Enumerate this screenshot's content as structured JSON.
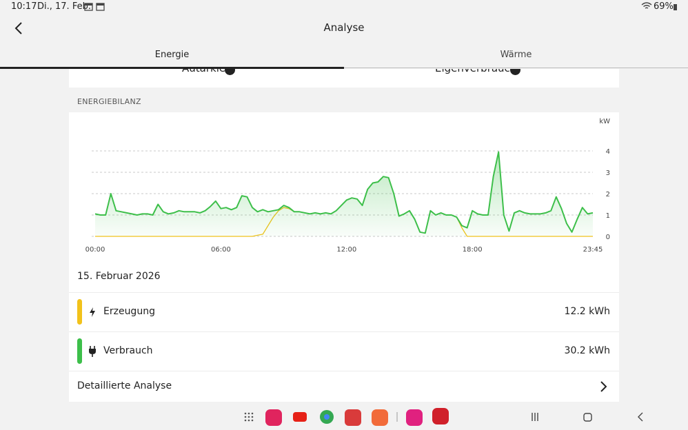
{
  "status_bar": {
    "time": "10:17",
    "date": "Di., 17. Feb.",
    "battery": "69%"
  },
  "header": {
    "title": "Analyse"
  },
  "tabs": [
    "Energie",
    "Wärme"
  ],
  "top_items": [
    "Autarkie",
    "Eigenverbrauch"
  ],
  "section_label": "ENERGIEBILANZ",
  "chart_data": {
    "type": "line",
    "y_unit": "kW",
    "x": [
      0,
      0.25,
      0.5,
      0.75,
      1,
      1.25,
      1.5,
      1.75,
      2,
      2.25,
      2.5,
      2.75,
      3,
      3.25,
      3.5,
      3.75,
      4,
      4.25,
      4.5,
      4.75,
      5,
      5.25,
      5.5,
      5.75,
      6,
      6.25,
      6.5,
      6.75,
      7,
      7.25,
      7.5,
      7.75,
      8,
      8.25,
      8.5,
      8.75,
      9,
      9.25,
      9.5,
      9.75,
      10,
      10.25,
      10.5,
      10.75,
      11,
      11.25,
      11.5,
      11.75,
      12,
      12.25,
      12.5,
      12.75,
      13,
      13.25,
      13.5,
      13.75,
      14,
      14.25,
      14.5,
      14.75,
      15,
      15.25,
      15.5,
      15.75,
      16,
      16.25,
      16.5,
      16.75,
      17,
      17.25,
      17.5,
      17.75,
      18,
      18.25,
      18.5,
      18.75,
      19,
      19.25,
      19.5,
      19.75,
      20,
      20.25,
      20.5,
      20.75,
      21,
      21.25,
      21.5,
      21.75,
      22,
      22.25,
      22.5,
      22.75,
      23,
      23.25,
      23.5,
      23.75
    ],
    "series": [
      {
        "name": "Erzeugung",
        "color": "#f2c21b",
        "values": [
          0,
          0,
          0,
          0,
          0,
          0,
          0,
          0,
          0,
          0,
          0,
          0,
          0,
          0,
          0,
          0,
          0,
          0,
          0,
          0,
          0,
          0,
          0,
          0,
          0,
          0,
          0,
          0,
          0,
          0,
          0,
          0.05,
          0.1,
          0.5,
          0.9,
          1.2,
          1.35,
          1.3,
          1.15,
          1.15,
          1.1,
          1.05,
          1.1,
          1.05,
          1.1,
          1.05,
          1.2,
          1.45,
          1.7,
          1.8,
          1.75,
          1.45,
          2.2,
          2.5,
          2.55,
          2.8,
          2.75,
          2.0,
          0.95,
          1.05,
          1.2,
          0.8,
          0.2,
          0.15,
          1.2,
          1.0,
          1.1,
          1.0,
          1.0,
          0.9,
          0.4,
          0,
          0,
          0,
          0,
          0,
          0,
          0,
          0,
          0,
          0,
          0,
          0,
          0,
          0,
          0,
          0,
          0,
          0,
          0,
          0,
          0,
          0,
          0,
          0,
          0
        ]
      },
      {
        "name": "Verbrauch",
        "color": "#3dbf4a",
        "values": [
          1.05,
          1.0,
          1.0,
          2.0,
          1.2,
          1.15,
          1.1,
          1.05,
          1.0,
          1.05,
          1.05,
          1.0,
          1.5,
          1.15,
          1.05,
          1.1,
          1.2,
          1.15,
          1.15,
          1.15,
          1.1,
          1.2,
          1.4,
          1.65,
          1.3,
          1.35,
          1.25,
          1.35,
          1.9,
          1.85,
          1.35,
          1.15,
          1.25,
          1.15,
          1.2,
          1.25,
          1.45,
          1.35,
          1.15,
          1.15,
          1.1,
          1.05,
          1.1,
          1.05,
          1.1,
          1.05,
          1.2,
          1.45,
          1.7,
          1.8,
          1.75,
          1.45,
          2.2,
          2.5,
          2.55,
          2.8,
          2.75,
          2.0,
          0.95,
          1.05,
          1.2,
          0.8,
          0.2,
          0.15,
          1.2,
          1.0,
          1.1,
          1.0,
          1.0,
          0.9,
          0.5,
          0.4,
          1.2,
          1.05,
          1.0,
          1.0,
          2.8,
          3.95,
          1.0,
          0.25,
          1.1,
          1.2,
          1.1,
          1.05,
          1.05,
          1.05,
          1.1,
          1.2,
          1.85,
          1.3,
          0.6,
          0.2,
          0.8,
          1.35,
          1.05,
          1.1
        ]
      }
    ],
    "xlim": [
      0,
      23.75
    ],
    "xticks": [
      {
        "value": 0,
        "label": "00:00"
      },
      {
        "value": 6,
        "label": "06:00"
      },
      {
        "value": 12,
        "label": "12:00"
      },
      {
        "value": 18,
        "label": "18:00"
      },
      {
        "value": 23.75,
        "label": "23:45"
      }
    ],
    "ylim": [
      0,
      4
    ],
    "yticks": [
      0,
      1,
      2,
      3,
      4
    ],
    "grid": true
  },
  "summary": {
    "date": "15. Februar 2026",
    "rows": [
      {
        "label": "Erzeugung",
        "value": "12.2 kWh"
      },
      {
        "label": "Verbrauch",
        "value": "30.2 kWh"
      }
    ],
    "link": "Detaillierte Analyse"
  }
}
